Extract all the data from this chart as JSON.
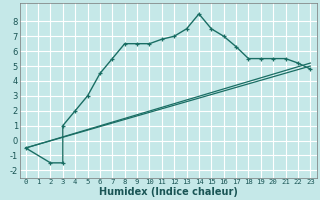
{
  "xlabel": "Humidex (Indice chaleur)",
  "ylabel": "",
  "background_color": "#c5e8e8",
  "grid_color": "#ffffff",
  "line_color": "#1a6e64",
  "xlim": [
    -0.5,
    23.5
  ],
  "ylim": [
    -2.5,
    9.2
  ],
  "xticks": [
    0,
    1,
    2,
    3,
    4,
    5,
    6,
    7,
    8,
    9,
    10,
    11,
    12,
    13,
    14,
    15,
    16,
    17,
    18,
    19,
    20,
    21,
    22,
    23
  ],
  "yticks": [
    -2,
    -1,
    0,
    1,
    2,
    3,
    4,
    5,
    6,
    7,
    8
  ],
  "line1_x": [
    0,
    2,
    3,
    3,
    4,
    5,
    6,
    7,
    8,
    9,
    10,
    11,
    12,
    13,
    14,
    15,
    16,
    17,
    18,
    19,
    20,
    21,
    22,
    23
  ],
  "line1_y": [
    -0.5,
    -1.5,
    -1.5,
    1.0,
    2.0,
    3.0,
    4.5,
    5.5,
    6.5,
    6.5,
    6.5,
    6.8,
    7.0,
    7.5,
    8.5,
    7.5,
    7.0,
    6.3,
    5.5,
    5.5,
    5.5,
    5.5,
    5.2,
    4.8
  ],
  "line2_x": [
    0,
    23
  ],
  "line2_y": [
    -0.5,
    5.0
  ],
  "line3_x": [
    0,
    23
  ],
  "line3_y": [
    -0.5,
    5.2
  ],
  "xlabel_fontsize": 7,
  "tick_fontsize_x": 5.2,
  "tick_fontsize_y": 6.0,
  "tick_color": "#1a5555",
  "xlabel_color": "#1a5555"
}
